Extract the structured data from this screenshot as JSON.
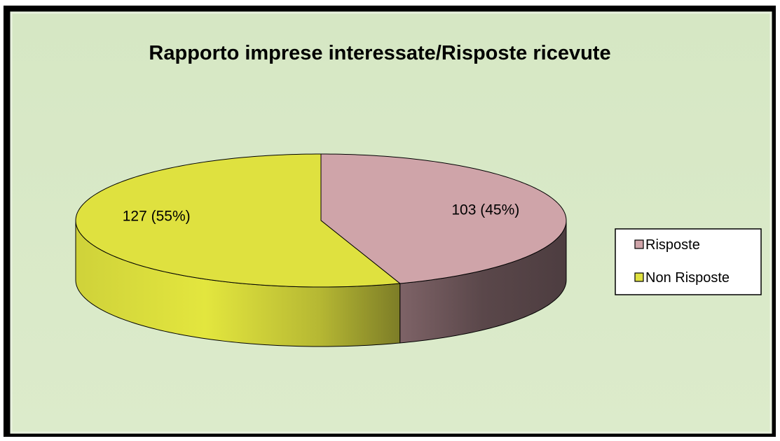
{
  "chart_data": {
    "type": "pie3d",
    "title": "Rapporto imprese interessate/Risposte ricevute",
    "categories": [
      "Risposte",
      "Non Risposte"
    ],
    "values": [
      103,
      127
    ],
    "value_labels": [
      "103 (45%)",
      "127 (55%)"
    ],
    "colors": [
      "#cfa4a9",
      "#dfe13f"
    ],
    "legend": "right"
  }
}
